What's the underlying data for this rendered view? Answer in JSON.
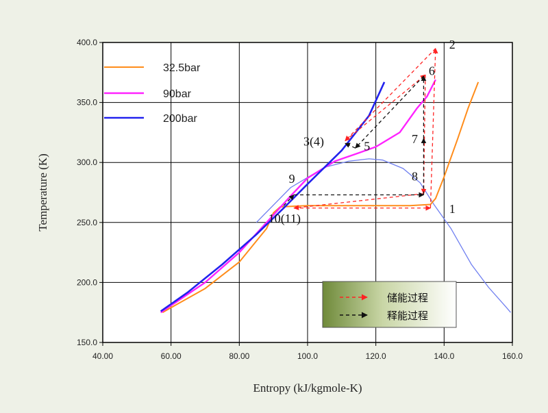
{
  "chart_data": {
    "type": "line",
    "xlabel": "Entropy (kJ/kgmole-K)",
    "ylabel": "Temperature (K)",
    "xlim": [
      40,
      160
    ],
    "ylim": [
      150,
      400
    ],
    "x_ticks": [
      "40.00",
      "60.00",
      "80.00",
      "100.0",
      "120.0",
      "140.0",
      "160.0"
    ],
    "y_ticks": [
      "150.0",
      "200.0",
      "250.0",
      "300.0",
      "350.0",
      "400.0"
    ],
    "grid": true,
    "legend_position": "top-left",
    "series": [
      {
        "name": "32.5bar",
        "color": "#ff8c1a",
        "width": 2,
        "points": [
          [
            57.5,
            175
          ],
          [
            70,
            195
          ],
          [
            80,
            217
          ],
          [
            88,
            245
          ],
          [
            90,
            258
          ],
          [
            92,
            263
          ],
          [
            100,
            264
          ],
          [
            120,
            264
          ],
          [
            130,
            264
          ],
          [
            136,
            265
          ],
          [
            137.5,
            270
          ],
          [
            140,
            288
          ],
          [
            144,
            320
          ],
          [
            147,
            345
          ],
          [
            150,
            367
          ]
        ]
      },
      {
        "name": "90bar",
        "color": "#ff22ff",
        "width": 2.4,
        "points": [
          [
            57,
            175
          ],
          [
            70,
            200
          ],
          [
            80,
            225
          ],
          [
            88,
            250
          ],
          [
            95,
            272
          ],
          [
            100,
            287
          ],
          [
            108,
            301
          ],
          [
            115,
            308
          ],
          [
            120,
            313
          ],
          [
            127,
            325
          ],
          [
            132,
            345
          ],
          [
            135,
            355
          ],
          [
            137.5,
            369
          ]
        ]
      },
      {
        "name": "200bar",
        "color": "#2222ee",
        "width": 2.6,
        "points": [
          [
            57,
            176
          ],
          [
            65,
            192
          ],
          [
            75,
            215
          ],
          [
            85,
            240
          ],
          [
            93,
            262
          ],
          [
            100,
            282
          ],
          [
            110,
            310
          ],
          [
            118,
            339
          ],
          [
            122.5,
            367
          ]
        ]
      }
    ],
    "saturation_dome": {
      "color": "#6f7ff0",
      "points": [
        [
          85,
          250
        ],
        [
          95,
          279
        ],
        [
          105,
          296
        ],
        [
          112,
          301
        ],
        [
          118,
          303
        ],
        [
          122,
          302
        ],
        [
          128,
          295
        ],
        [
          133,
          283
        ],
        [
          137,
          265
        ],
        [
          142,
          245
        ],
        [
          148,
          215
        ],
        [
          153,
          196
        ],
        [
          158,
          180
        ],
        [
          159.5,
          175
        ]
      ]
    },
    "process_paths": [
      {
        "name": "储能过程",
        "color": "#ff2222",
        "points": [
          [
            136,
            262
          ],
          [
            137.5,
            395
          ],
          [
            111,
            318
          ],
          [
            134.5,
            373
          ],
          [
            134,
            274
          ],
          [
            96,
            262
          ],
          [
            136,
            262
          ]
        ]
      },
      {
        "name": "释能过程",
        "color": "#111111",
        "points": [
          [
            93,
            264
          ],
          [
            96,
            273
          ],
          [
            134,
            273
          ],
          [
            134,
            320
          ],
          [
            134,
            372
          ],
          [
            114,
            312
          ],
          [
            111,
            316
          ]
        ]
      }
    ],
    "point_labels": [
      {
        "text": "1",
        "x": 141.5,
        "y": 258
      },
      {
        "text": "2",
        "x": 141.5,
        "y": 395
      },
      {
        "text": "3(4)",
        "x": 98.8,
        "y": 314
      },
      {
        "text": "5",
        "x": 116.5,
        "y": 310
      },
      {
        "text": "6",
        "x": 135.5,
        "y": 373
      },
      {
        "text": "7",
        "x": 130.5,
        "y": 316
      },
      {
        "text": "8",
        "x": 130.5,
        "y": 285
      },
      {
        "text": "9",
        "x": 94.5,
        "y": 283
      },
      {
        "text": "10(11)",
        "x": 88.5,
        "y": 250
      }
    ],
    "process_legend": [
      {
        "label": "储能过程",
        "color": "#ff2222"
      },
      {
        "label": "释能过程",
        "color": "#111111"
      }
    ]
  }
}
